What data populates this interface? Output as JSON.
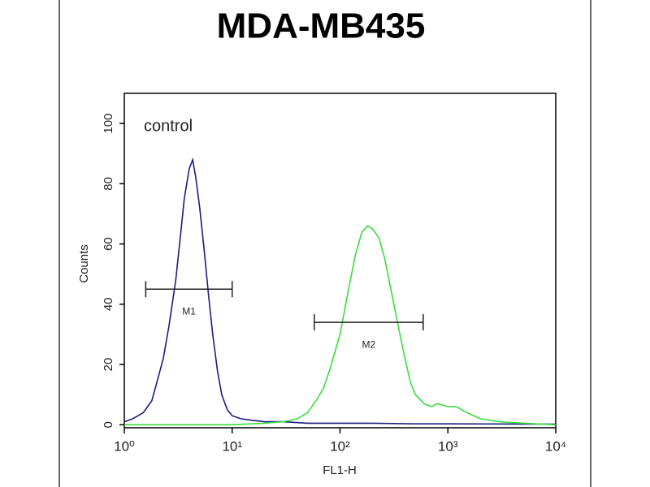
{
  "chart_data": {
    "type": "line",
    "title": "MDA-MB435",
    "xlabel": "FL1-H",
    "ylabel": "Counts",
    "annotation": "control",
    "xscale": "log",
    "xlim": [
      1,
      10000
    ],
    "xticks": [
      {
        "value": 1,
        "label": "10⁰"
      },
      {
        "value": 10,
        "label": "10¹"
      },
      {
        "value": 100,
        "label": "10²"
      },
      {
        "value": 1000,
        "label": "10³"
      },
      {
        "value": 10000,
        "label": "10⁴"
      }
    ],
    "ylim": [
      -1,
      110
    ],
    "yticks": [
      0,
      20,
      40,
      60,
      80,
      100
    ],
    "series": [
      {
        "color": "#1c1c80",
        "x": [
          1,
          1.2,
          1.5,
          1.8,
          2.0,
          2.3,
          2.6,
          3.0,
          3.3,
          3.6,
          4.0,
          4.3,
          4.6,
          5.0,
          5.5,
          6.0,
          6.6,
          7.3,
          8,
          9,
          10,
          12,
          15,
          20,
          30,
          50,
          100,
          200,
          500,
          1000,
          10000
        ],
        "values": [
          1,
          2,
          4,
          8,
          14,
          22,
          33,
          48,
          62,
          75,
          85,
          88,
          82,
          72,
          58,
          44,
          30,
          18,
          10,
          5,
          3,
          2,
          1.5,
          1,
          1,
          0.5,
          0.5,
          0.5,
          0.3,
          0.3,
          0.2
        ]
      },
      {
        "color": "#3cdc3c",
        "x": [
          1,
          10,
          20,
          30,
          40,
          50,
          60,
          70,
          80,
          100,
          120,
          140,
          160,
          180,
          200,
          230,
          260,
          300,
          350,
          400,
          450,
          500,
          600,
          700,
          800,
          1000,
          1200,
          1500,
          2000,
          3000,
          5000,
          10000
        ],
        "values": [
          0,
          0,
          0.5,
          1,
          2,
          4,
          8,
          12,
          18,
          30,
          45,
          57,
          64,
          66,
          65,
          62,
          55,
          44,
          32,
          22,
          14,
          10,
          7,
          6,
          7,
          6,
          6,
          4,
          2,
          1,
          0.5,
          0
        ]
      }
    ],
    "markers": [
      {
        "label": "M1",
        "range": [
          1.58,
          10
        ],
        "y": 45
      },
      {
        "label": "M2",
        "range": [
          57.7,
          590
        ],
        "y": 34
      }
    ]
  }
}
